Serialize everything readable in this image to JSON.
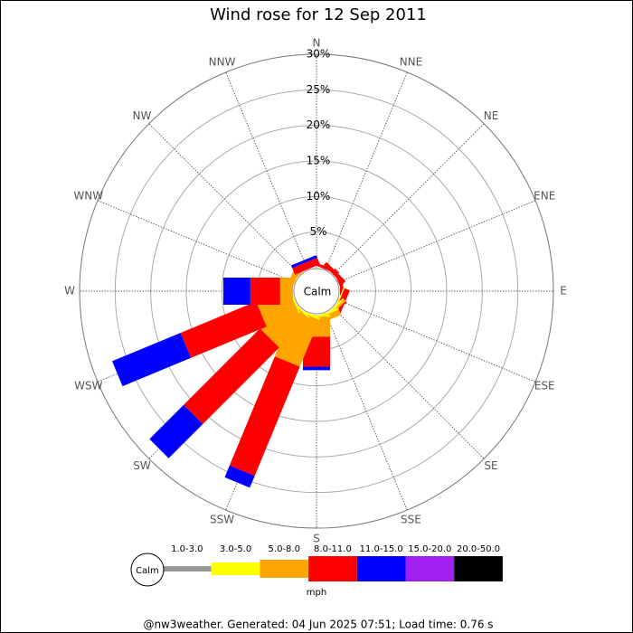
{
  "chart_data": {
    "type": "windrose",
    "title": "Wind rose for 12 Sep 2011",
    "directions": [
      "N",
      "NNE",
      "NE",
      "ENE",
      "E",
      "ESE",
      "SE",
      "SSE",
      "S",
      "SSW",
      "SW",
      "WSW",
      "W",
      "WNW",
      "NW",
      "NNW"
    ],
    "center_label": "Calm",
    "rlim": [
      0,
      30
    ],
    "rticks": [
      {
        "value": 5,
        "label": "5%"
      },
      {
        "value": 10,
        "label": "10%"
      },
      {
        "value": 15,
        "label": "15%"
      },
      {
        "value": 20,
        "label": "20%"
      },
      {
        "value": 25,
        "label": "25%"
      },
      {
        "value": 30,
        "label": "30%"
      }
    ],
    "series": [
      {
        "name": "1.0-3.0",
        "color": "#999999",
        "values": [
          0,
          0,
          0,
          0,
          0,
          0,
          0,
          0,
          0,
          0,
          0,
          0,
          0,
          0,
          0,
          0
        ]
      },
      {
        "name": "3.0-5.0",
        "color": "#ffff00",
        "values": [
          0,
          0,
          0,
          0,
          0,
          0.2,
          0.3,
          0.3,
          0.3,
          0.3,
          0.2,
          0.2,
          0,
          0,
          0,
          0
        ]
      },
      {
        "name": "5.0-8.0",
        "color": "#ffa500",
        "values": [
          0,
          0,
          0,
          0,
          0,
          0,
          0.3,
          0.8,
          2.8,
          7.1,
          5.8,
          4.9,
          1.8,
          0.8,
          0.5,
          0
        ]
      },
      {
        "name": "8.0-11.0",
        "color": "#ff0000",
        "values": [
          0,
          0.4,
          0.6,
          0.4,
          0.4,
          0.8,
          0.2,
          0,
          4.2,
          16.6,
          15.2,
          11.5,
          4.2,
          0,
          0,
          1.0
        ]
      },
      {
        "name": "11.0-15.0",
        "color": "#0000ff",
        "values": [
          0,
          0,
          0,
          0,
          0,
          0,
          0,
          0,
          0.5,
          1.8,
          6.8,
          10.4,
          3.8,
          0,
          0,
          0.4
        ]
      },
      {
        "name": "15.0-20.0",
        "color": "#a020f0",
        "values": [
          0,
          0,
          0,
          0,
          0,
          0,
          0,
          0,
          0,
          0,
          0,
          0,
          0,
          0,
          0,
          0
        ]
      },
      {
        "name": "20.0-50.0",
        "color": "#000000",
        "values": [
          0,
          0,
          0,
          0,
          0,
          0,
          0,
          0,
          0,
          0,
          0,
          0,
          0,
          0,
          0,
          0
        ]
      }
    ],
    "legend_calm": "Calm",
    "legend_unit": "mph",
    "footer": "@nw3weather. Generated: 04 Jun 2025 07:51; Load time: 0.76 s"
  }
}
